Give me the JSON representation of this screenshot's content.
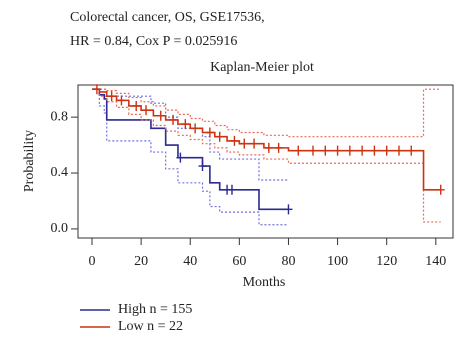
{
  "chart_data": {
    "type": "survival",
    "title": "Colorectal cancer, OS, GSE17536,",
    "subtitle": "HR = 0.84, Cox P = 0.025916",
    "plot_title": "Kaplan-Meier plot",
    "x_label": "Months",
    "y_label": "Probability",
    "xlim": [
      -5.7,
      147
    ],
    "ylim": [
      -0.065,
      1.03
    ],
    "xticks": [
      0,
      20,
      40,
      60,
      80,
      100,
      120,
      140
    ],
    "yticks": [
      {
        "value": 0,
        "label": "0.0"
      },
      0.4,
      0.8
    ],
    "legend": "bottom-left",
    "series": [
      {
        "name": "High n = 155",
        "color": "#2a2a90",
        "ci_color": "#7070e0",
        "x": [
          0,
          3,
          5,
          6,
          24,
          30,
          35,
          45,
          48,
          52,
          68,
          80
        ],
        "values": [
          1.0,
          0.96,
          0.93,
          0.78,
          0.72,
          0.6,
          0.51,
          0.45,
          0.33,
          0.28,
          0.14,
          0.14
        ],
        "ci_upper": [
          1.0,
          1.0,
          1.0,
          0.95,
          0.9,
          0.8,
          0.72,
          0.66,
          0.55,
          0.5,
          0.35,
          0.35
        ],
        "ci_lower": [
          1.0,
          0.88,
          0.83,
          0.63,
          0.55,
          0.43,
          0.33,
          0.27,
          0.16,
          0.12,
          0.03,
          0.03
        ],
        "censor_x": [
          36,
          45,
          55,
          57,
          80
        ],
        "censor_values": [
          0.51,
          0.45,
          0.28,
          0.28,
          0.14
        ]
      },
      {
        "name": "Low n = 22",
        "color": "#cc3311",
        "ci_color": "#e86a55",
        "x": [
          0,
          3,
          6,
          10,
          15,
          20,
          25,
          30,
          35,
          40,
          45,
          50,
          55,
          60,
          70,
          80,
          135,
          142
        ],
        "values": [
          1.0,
          0.98,
          0.95,
          0.92,
          0.88,
          0.85,
          0.81,
          0.78,
          0.75,
          0.72,
          0.69,
          0.66,
          0.63,
          0.61,
          0.58,
          0.56,
          0.28,
          0.28
        ],
        "ci_upper": [
          1.0,
          1.0,
          0.99,
          0.97,
          0.94,
          0.91,
          0.88,
          0.85,
          0.82,
          0.79,
          0.77,
          0.74,
          0.71,
          0.69,
          0.67,
          0.66,
          1.0,
          1.0
        ],
        "ci_lower": [
          1.0,
          0.95,
          0.91,
          0.87,
          0.82,
          0.78,
          0.74,
          0.7,
          0.67,
          0.64,
          0.61,
          0.58,
          0.55,
          0.53,
          0.5,
          0.47,
          0.05,
          0.05
        ],
        "censor_x": [
          2,
          8,
          12,
          18,
          22,
          28,
          33,
          38,
          42,
          48,
          52,
          58,
          62,
          66,
          72,
          76,
          84,
          90,
          95,
          100,
          105,
          110,
          115,
          120,
          125,
          130,
          142
        ],
        "censor_values": [
          1.0,
          0.95,
          0.92,
          0.88,
          0.85,
          0.81,
          0.78,
          0.75,
          0.72,
          0.69,
          0.66,
          0.63,
          0.61,
          0.61,
          0.58,
          0.58,
          0.56,
          0.56,
          0.56,
          0.56,
          0.56,
          0.56,
          0.56,
          0.56,
          0.56,
          0.56,
          0.28
        ]
      }
    ]
  }
}
